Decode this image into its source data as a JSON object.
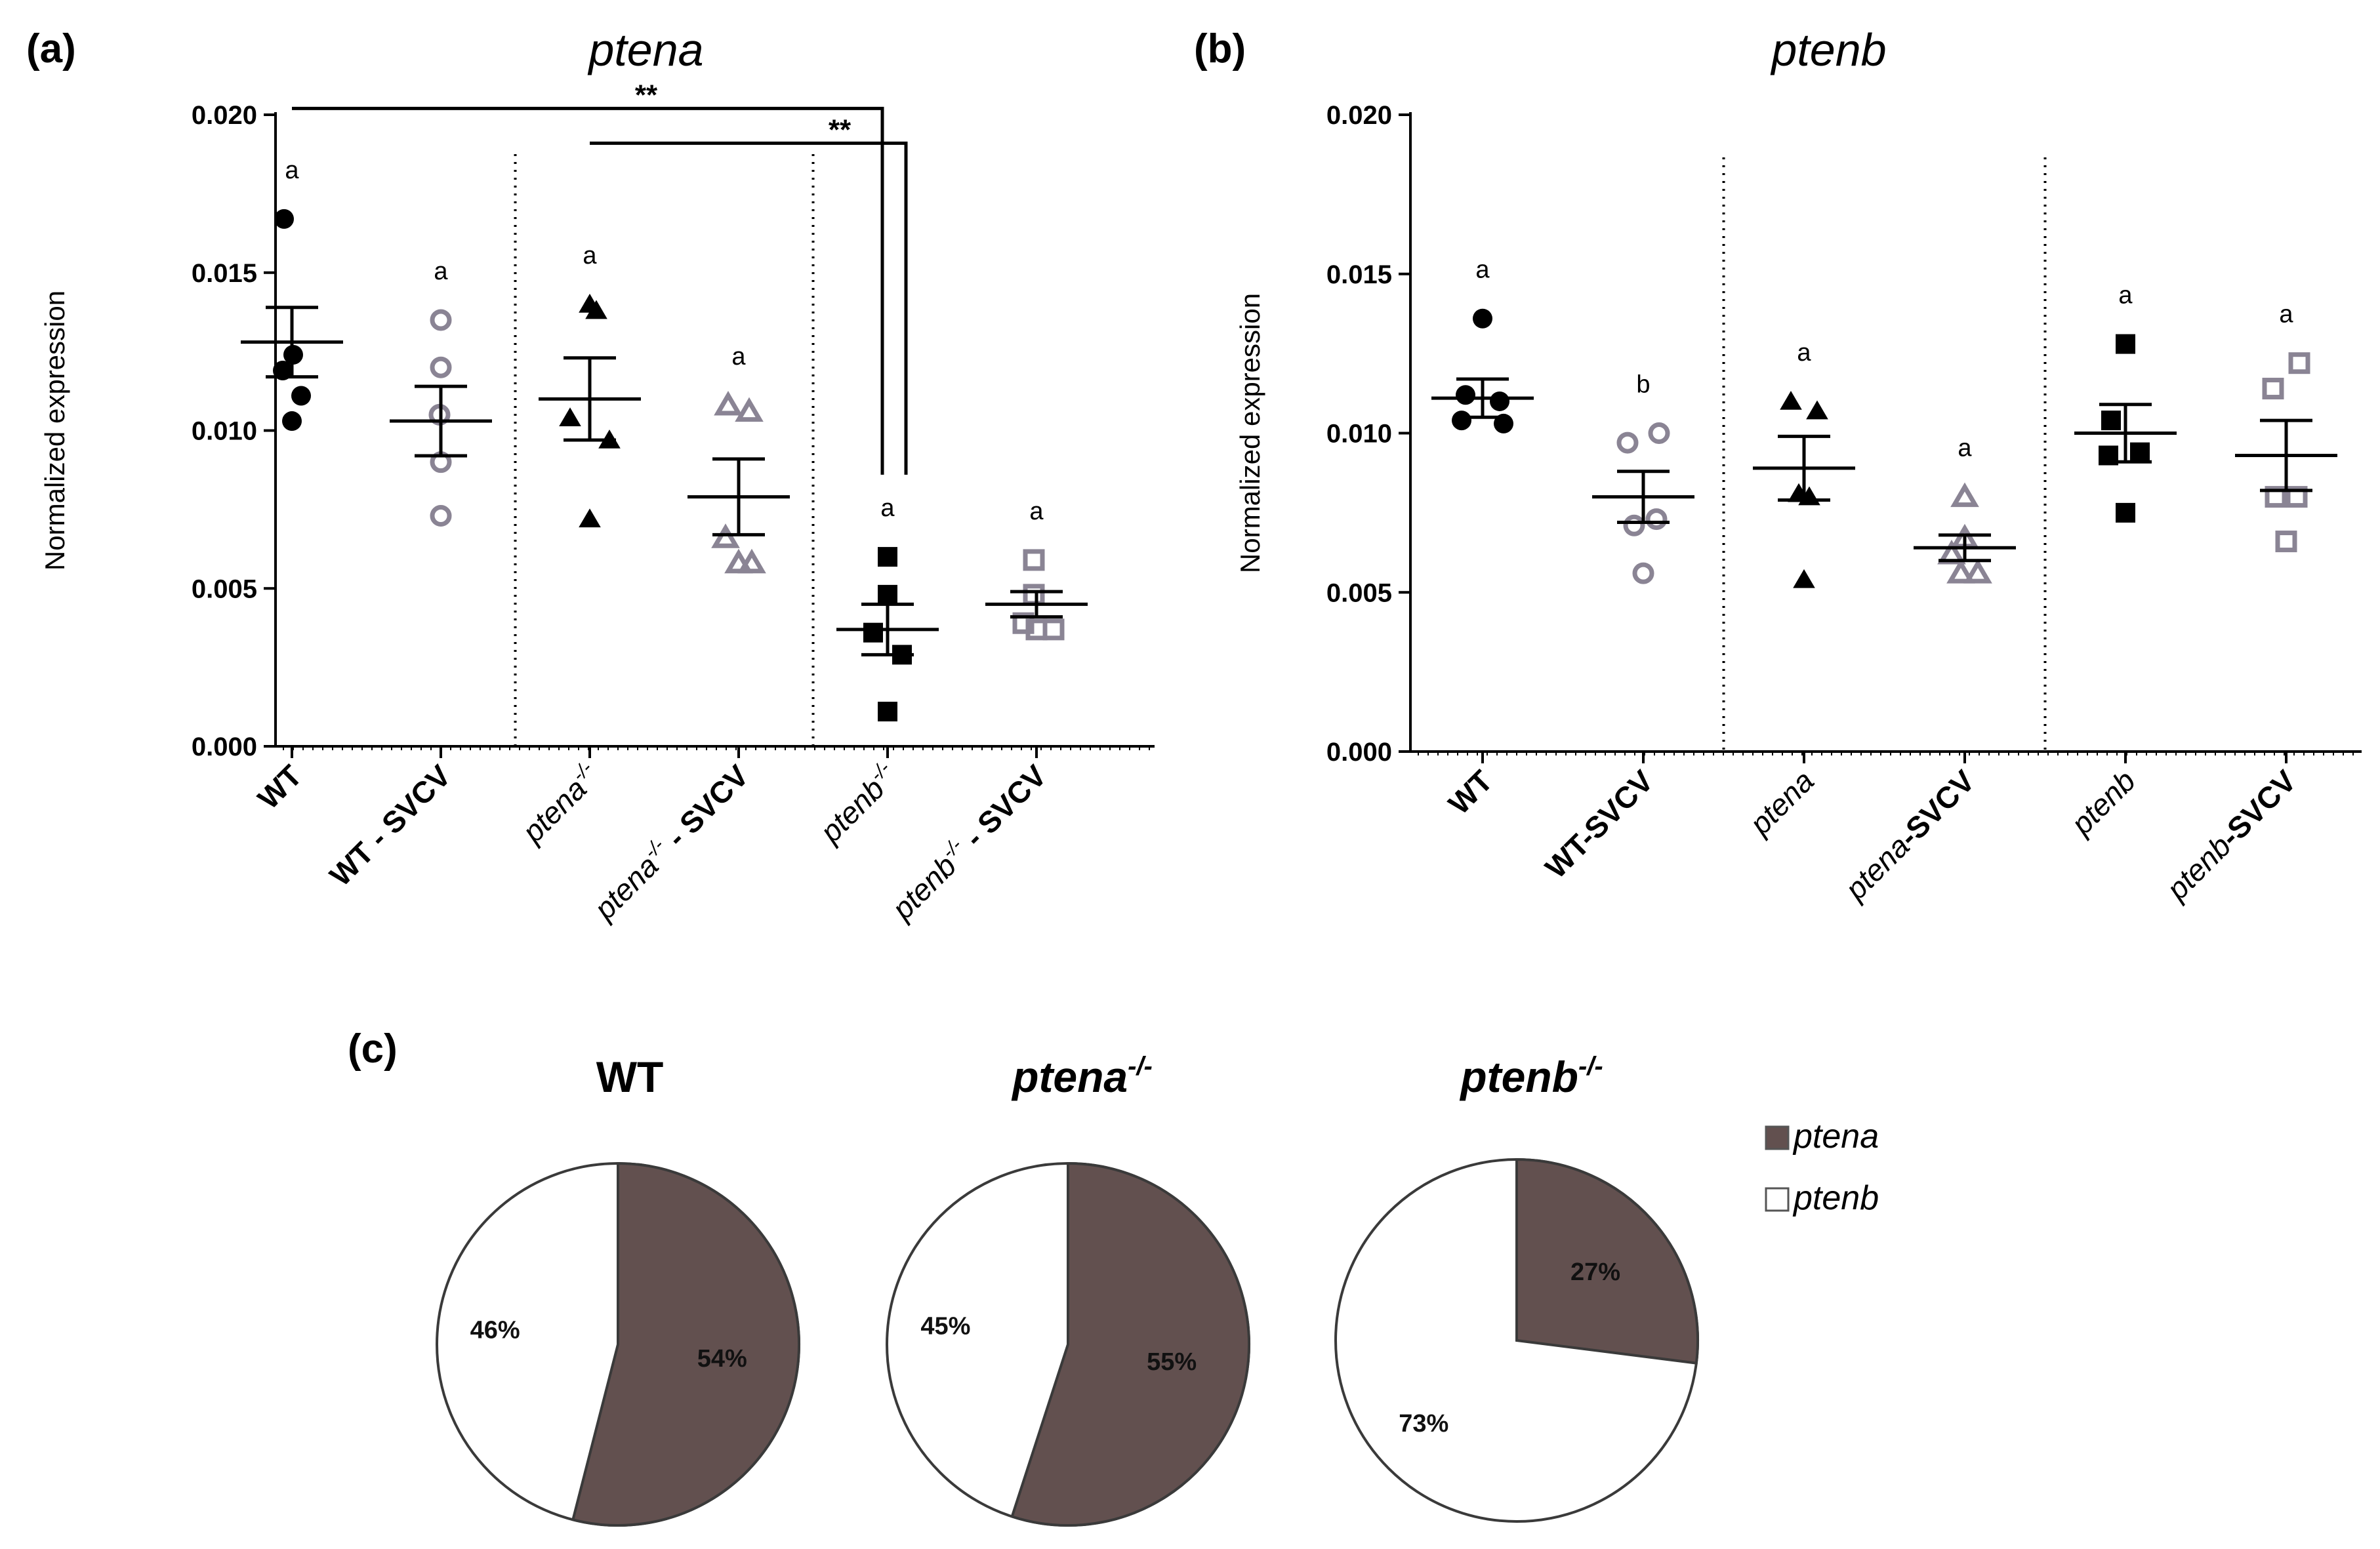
{
  "colors": {
    "black": "#000000",
    "gray": "#8a8494",
    "ptena_slice": "#62504f",
    "ptenb_slice": "#ffffff"
  },
  "chart_data": [
    {
      "panel_label": "(a)",
      "type": "scatter",
      "title": "ptena",
      "xlabel": "",
      "ylabel": "Normalized expression",
      "ylim": [
        0,
        0.02
      ],
      "yticks": [
        "0.000",
        "0.005",
        "0.010",
        "0.015",
        "0.020"
      ],
      "categories": [
        {
          "name": "WT",
          "sup": "",
          "suffix": "",
          "italic": false
        },
        {
          "name": "WT - SVCV",
          "sup": "",
          "suffix": "",
          "italic": false
        },
        {
          "name": "ptena",
          "sup": "-/-",
          "suffix": "",
          "italic": true
        },
        {
          "name": "ptena",
          "sup": "-/-",
          "suffix": " - SVCV",
          "italic": true
        },
        {
          "name": "ptenb",
          "sup": "-/-",
          "suffix": "",
          "italic": true
        },
        {
          "name": "ptenb",
          "sup": "-/-",
          "suffix": " - SVCV",
          "italic": true
        }
      ],
      "series": [
        {
          "marker": "circle",
          "color": "black",
          "values": [
            0.0167,
            0.0124,
            0.0119,
            0.0111,
            0.0103
          ],
          "mean": 0.0128,
          "sem": 0.0011,
          "letter": "a"
        },
        {
          "marker": "circle-open",
          "color": "gray",
          "values": [
            0.0135,
            0.012,
            0.0105,
            0.009,
            0.0073
          ],
          "mean": 0.0103,
          "sem": 0.0011,
          "letter": "a"
        },
        {
          "marker": "triangle",
          "color": "black",
          "values": [
            0.014,
            0.0138,
            0.0104,
            0.0097,
            0.0072
          ],
          "mean": 0.011,
          "sem": 0.0013,
          "letter": "a"
        },
        {
          "marker": "triangle-open",
          "color": "gray",
          "values": [
            0.0108,
            0.0106,
            0.0066,
            0.0058,
            0.0058
          ],
          "mean": 0.0079,
          "sem": 0.0012,
          "letter": "a"
        },
        {
          "marker": "square",
          "color": "black",
          "values": [
            0.006,
            0.0048,
            0.0036,
            0.0029,
            0.0011
          ],
          "mean": 0.0037,
          "sem": 0.0008,
          "letter": "a"
        },
        {
          "marker": "square-open",
          "color": "gray",
          "values": [
            0.0059,
            0.0048,
            0.0039,
            0.0037,
            0.0037
          ],
          "mean": 0.0045,
          "sem": 0.0004,
          "letter": "a"
        }
      ],
      "dividers_after": [
        1,
        3
      ],
      "significance": [
        {
          "from": 0,
          "to": 4,
          "label": "**",
          "level": 0.0202
        },
        {
          "from": 2,
          "to": 4,
          "label": "**",
          "level": 0.0191
        }
      ]
    },
    {
      "panel_label": "(b)",
      "type": "scatter",
      "title": "ptenb",
      "xlabel": "",
      "ylabel": "Normalized expression",
      "ylim": [
        0,
        0.02
      ],
      "yticks": [
        "0.000",
        "0.005",
        "0.010",
        "0.015",
        "0.020"
      ],
      "categories": [
        {
          "name": "WT",
          "sup": "",
          "suffix": "",
          "italic": false
        },
        {
          "name": "WT-SVCV",
          "sup": "",
          "suffix": "",
          "italic": false
        },
        {
          "name": "ptena",
          "sup": "",
          "suffix": "",
          "italic": true
        },
        {
          "name": "ptena",
          "sup": "",
          "suffix": "-SVCV",
          "italic": true
        },
        {
          "name": "ptenb",
          "sup": "",
          "suffix": "",
          "italic": true
        },
        {
          "name": "ptenb",
          "sup": "",
          "suffix": "-SVCV",
          "italic": true
        }
      ],
      "series": [
        {
          "marker": "circle",
          "color": "black",
          "values": [
            0.0136,
            0.0112,
            0.011,
            0.0104,
            0.0103
          ],
          "mean": 0.0111,
          "sem": 0.0006,
          "letter": "a"
        },
        {
          "marker": "circle-open",
          "color": "gray",
          "values": [
            0.01,
            0.0097,
            0.0073,
            0.0071,
            0.0056
          ],
          "mean": 0.008,
          "sem": 0.0008,
          "letter": "b"
        },
        {
          "marker": "triangle",
          "color": "black",
          "values": [
            0.011,
            0.0107,
            0.0081,
            0.008,
            0.0054
          ],
          "mean": 0.0089,
          "sem": 0.001,
          "letter": "a"
        },
        {
          "marker": "triangle-open",
          "color": "gray",
          "values": [
            0.008,
            0.0067,
            0.0062,
            0.0056,
            0.0056
          ],
          "mean": 0.0064,
          "sem": 0.0004,
          "letter": "a"
        },
        {
          "marker": "square",
          "color": "black",
          "values": [
            0.0128,
            0.0104,
            0.0094,
            0.0093,
            0.0075
          ],
          "mean": 0.01,
          "sem": 0.0009,
          "letter": "a"
        },
        {
          "marker": "square-open",
          "color": "gray",
          "values": [
            0.0122,
            0.0114,
            0.008,
            0.008,
            0.0066
          ],
          "mean": 0.0093,
          "sem": 0.0011,
          "letter": "a"
        }
      ],
      "dividers_after": [
        1,
        3
      ],
      "significance": []
    },
    {
      "panel_label": "(c)",
      "type": "pie",
      "legend": [
        {
          "label": "ptena",
          "color": "ptena_slice"
        },
        {
          "label": "ptenb",
          "color": "ptenb_slice"
        }
      ],
      "pies": [
        {
          "title": "WT",
          "sup": "",
          "italic": false,
          "ptena": 54,
          "ptenb": 46,
          "ptena_label": "54%",
          "ptenb_label": "46%"
        },
        {
          "title": "ptena",
          "sup": "-/-",
          "italic": true,
          "ptena": 55,
          "ptenb": 45,
          "ptena_label": "55%",
          "ptenb_label": "45%"
        },
        {
          "title": "ptenb",
          "sup": "-/-",
          "italic": true,
          "ptena": 27,
          "ptenb": 73,
          "ptena_label": "27%",
          "ptenb_label": "73%"
        }
      ]
    }
  ]
}
